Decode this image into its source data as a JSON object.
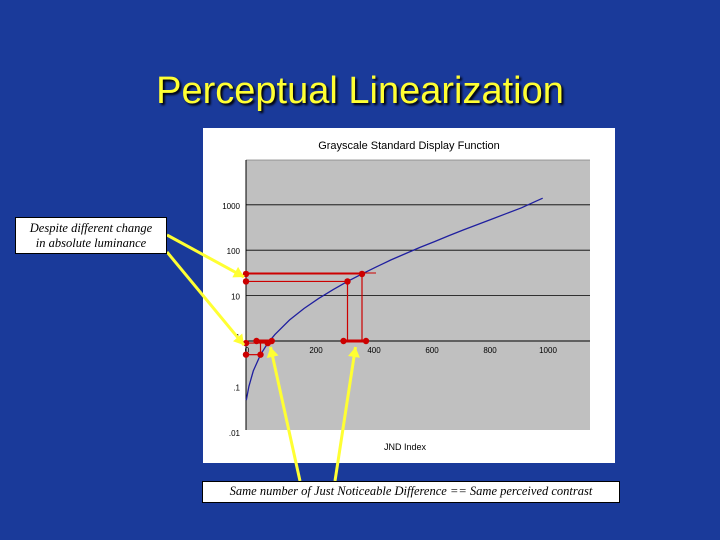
{
  "slide": {
    "title": "Perceptual Linearization",
    "callout_left": [
      "Despite different change",
      "in absolute luminance"
    ],
    "callout_bottom": "Same number of Just Noticeable Difference == Same perceived contrast"
  },
  "colors": {
    "background": "#1a3a9a",
    "title": "#ffff33",
    "plot_area": "#c0c0c0",
    "curve": "#1f1f9f",
    "marker": "#cc0000",
    "arrow": "#ffff33"
  },
  "chart_data": {
    "type": "line",
    "title": "Grayscale Standard Display Function",
    "xlabel": "JND Index",
    "ylabel": "",
    "y_scale": "log",
    "x_ticks": [
      "0",
      "200",
      "400",
      "600",
      "800",
      "1000"
    ],
    "x_tick_values": [
      0,
      200,
      400,
      600,
      800,
      1000
    ],
    "y_ticks": [
      ".01",
      ".1",
      "1",
      "10",
      "100",
      "1000"
    ],
    "y_tick_values": [
      0.01,
      0.1,
      1,
      10,
      100,
      1000
    ],
    "xlim": [
      0,
      1100
    ],
    "ylim": [
      0.01,
      10000
    ],
    "grid": true,
    "legend": "none",
    "series": [
      {
        "x": [
          1,
          10,
          25,
          50,
          75,
          100,
          150,
          200,
          250,
          300,
          350,
          400,
          450,
          500,
          550,
          600,
          650,
          700,
          750,
          800,
          850,
          900,
          950,
          1000,
          1023
        ],
        "y": [
          0.05,
          0.1,
          0.22,
          0.5,
          0.9,
          1.4,
          2.9,
          5.2,
          8.6,
          13.5,
          20.5,
          30,
          43,
          61,
          84,
          115,
          155,
          210,
          280,
          370,
          490,
          650,
          860,
          1200,
          1400
        ]
      }
    ],
    "annotations": {
      "low_pair": {
        "x": [
          50,
          75
        ],
        "y": [
          0.5,
          0.9
        ]
      },
      "high_pair": {
        "x": [
          350,
          400
        ],
        "y": [
          20.5,
          30
        ]
      }
    }
  }
}
